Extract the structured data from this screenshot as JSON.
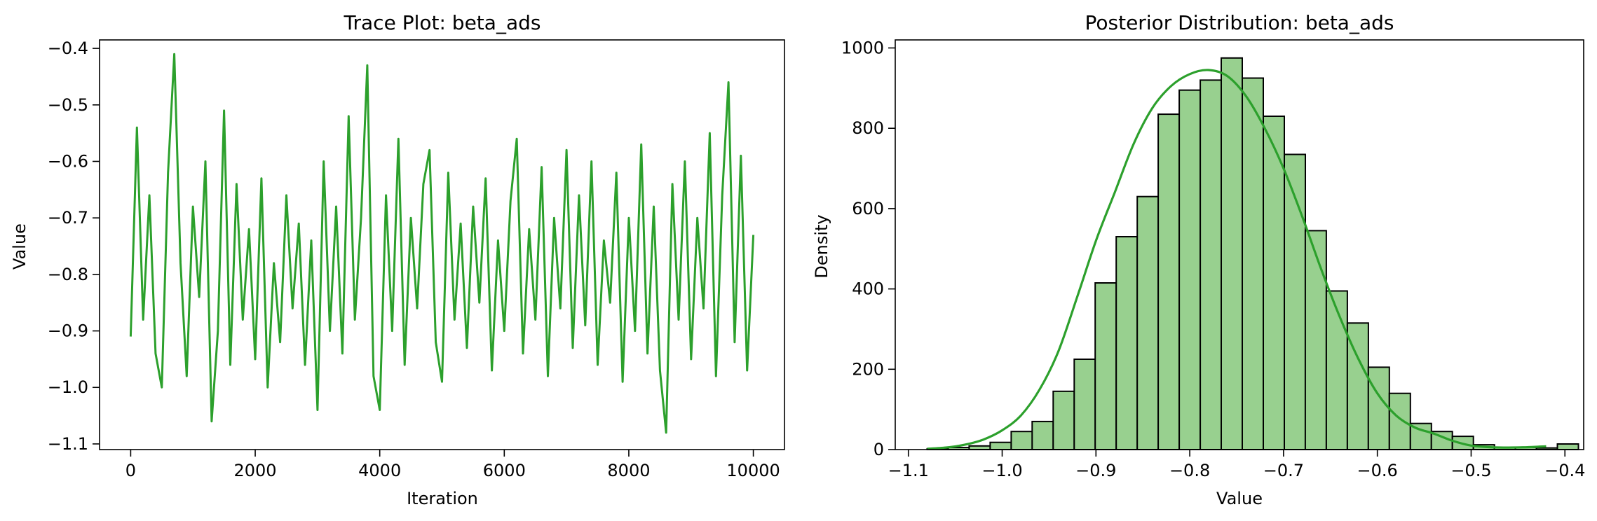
{
  "chart_data": [
    {
      "type": "line",
      "title": "Trace Plot: beta_ads",
      "xlabel": "Iteration",
      "ylabel": "Value",
      "xlim": [
        -500,
        10500
      ],
      "ylim": [
        -1.11,
        -0.385
      ],
      "xticks": [
        0,
        2000,
        4000,
        6000,
        8000,
        10000
      ],
      "xtick_labels": [
        "0",
        "2000",
        "4000",
        "6000",
        "8000",
        "10000"
      ],
      "yticks": [
        -1.1,
        -1.0,
        -0.9,
        -0.8,
        -0.7,
        -0.6,
        -0.5,
        -0.4
      ],
      "ytick_labels": [
        "−1.1",
        "−1.0",
        "−0.9",
        "−0.8",
        "−0.7",
        "−0.6",
        "−0.5",
        "−0.4"
      ],
      "grid": false,
      "color": "#2ca02c",
      "series": [
        {
          "x": [
            0,
            100,
            200,
            300,
            400,
            500,
            600,
            700,
            800,
            900,
            1000,
            1100,
            1200,
            1300,
            1400,
            1500,
            1600,
            1700,
            1800,
            1900,
            2000,
            2100,
            2200,
            2300,
            2400,
            2500,
            2600,
            2700,
            2800,
            2900,
            3000,
            3100,
            3200,
            3300,
            3400,
            3500,
            3600,
            3700,
            3800,
            3900,
            4000,
            4100,
            4200,
            4300,
            4400,
            4500,
            4600,
            4700,
            4800,
            4900,
            5000,
            5100,
            5200,
            5300,
            5400,
            5500,
            5600,
            5700,
            5800,
            5900,
            6000,
            6100,
            6200,
            6300,
            6400,
            6500,
            6600,
            6700,
            6800,
            6900,
            7000,
            7100,
            7200,
            7300,
            7400,
            7500,
            7600,
            7700,
            7800,
            7900,
            8000,
            8100,
            8200,
            8300,
            8400,
            8500,
            8600,
            8700,
            8800,
            8900,
            9000,
            9100,
            9200,
            9300,
            9400,
            9500,
            9600,
            9700,
            9800,
            9900,
            10000
          ],
          "y": [
            -0.91,
            -0.54,
            -0.88,
            -0.66,
            -0.94,
            -1.0,
            -0.62,
            -0.41,
            -0.78,
            -0.98,
            -0.68,
            -0.84,
            -0.6,
            -1.06,
            -0.9,
            -0.51,
            -0.96,
            -0.64,
            -0.88,
            -0.72,
            -0.95,
            -0.63,
            -1.0,
            -0.78,
            -0.92,
            -0.66,
            -0.86,
            -0.71,
            -0.96,
            -0.74,
            -1.04,
            -0.6,
            -0.9,
            -0.68,
            -0.94,
            -0.52,
            -0.88,
            -0.7,
            -0.43,
            -0.98,
            -1.04,
            -0.66,
            -0.9,
            -0.56,
            -0.96,
            -0.7,
            -0.86,
            -0.64,
            -0.58,
            -0.92,
            -0.99,
            -0.62,
            -0.88,
            -0.71,
            -0.93,
            -0.68,
            -0.85,
            -0.63,
            -0.97,
            -0.74,
            -0.9,
            -0.67,
            -0.56,
            -0.94,
            -0.72,
            -0.88,
            -0.61,
            -0.98,
            -0.7,
            -0.86,
            -0.58,
            -0.93,
            -0.66,
            -0.89,
            -0.6,
            -0.96,
            -0.74,
            -0.85,
            -0.62,
            -0.99,
            -0.7,
            -0.9,
            -0.57,
            -0.94,
            -0.68,
            -0.97,
            -1.08,
            -0.64,
            -0.88,
            -0.6,
            -0.95,
            -0.7,
            -0.86,
            -0.55,
            -0.98,
            -0.66,
            -0.46,
            -0.92,
            -0.59,
            -0.97,
            -0.73
          ]
        }
      ]
    },
    {
      "type": "bar",
      "title": "Posterior Distribution: beta_ads",
      "xlabel": "Value",
      "ylabel": "Density",
      "xlim": [
        -1.114,
        -0.38
      ],
      "ylim": [
        0,
        1020
      ],
      "xticks": [
        -1.1,
        -1.0,
        -0.9,
        -0.8,
        -0.7,
        -0.6,
        -0.5,
        -0.4
      ],
      "xtick_labels": [
        "−1.1",
        "−1.0",
        "−0.9",
        "−0.8",
        "−0.7",
        "−0.6",
        "−0.5",
        "−0.4"
      ],
      "yticks": [
        0,
        200,
        400,
        600,
        800,
        1000
      ],
      "ytick_labels": [
        "0",
        "200",
        "400",
        "600",
        "800",
        "1000"
      ],
      "grid": false,
      "bar_color": "#98d08f",
      "edge_color": "#000000",
      "kde_color": "#2ca02c",
      "bin_start": -1.08,
      "bin_width": 0.0224,
      "values": [
        2,
        5,
        9,
        18,
        45,
        70,
        145,
        225,
        415,
        530,
        630,
        835,
        895,
        920,
        975,
        925,
        830,
        735,
        545,
        395,
        315,
        205,
        140,
        65,
        45,
        33,
        12,
        6,
        5,
        4,
        14
      ],
      "kde": {
        "x": [
          -1.08,
          -1.06,
          -1.04,
          -1.02,
          -1.0,
          -0.98,
          -0.96,
          -0.94,
          -0.92,
          -0.9,
          -0.88,
          -0.86,
          -0.84,
          -0.82,
          -0.8,
          -0.78,
          -0.76,
          -0.74,
          -0.72,
          -0.7,
          -0.68,
          -0.66,
          -0.64,
          -0.62,
          -0.6,
          -0.58,
          -0.56,
          -0.54,
          -0.52,
          -0.5,
          -0.48,
          -0.46,
          -0.44,
          -0.42
        ],
        "y": [
          2,
          5,
          12,
          25,
          48,
          85,
          150,
          245,
          380,
          520,
          640,
          760,
          850,
          905,
          935,
          945,
          930,
          880,
          800,
          700,
          580,
          450,
          330,
          225,
          140,
          85,
          55,
          40,
          22,
          10,
          6,
          5,
          6,
          8
        ]
      }
    }
  ]
}
